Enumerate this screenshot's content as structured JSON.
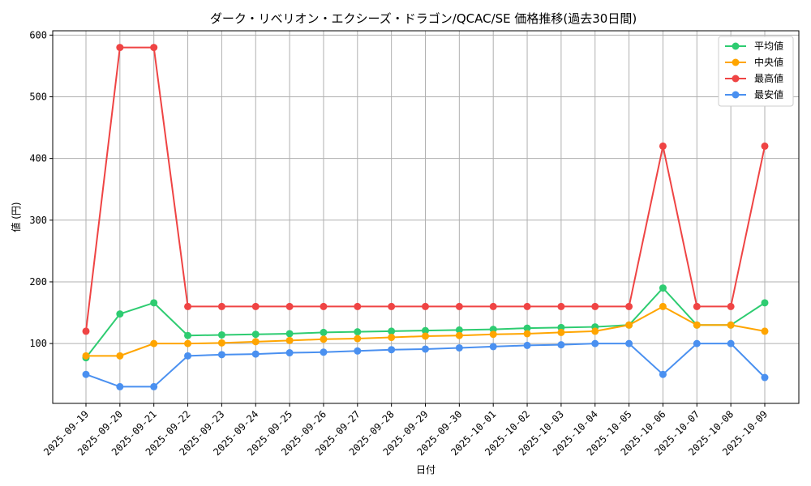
{
  "chart_data": {
    "type": "line",
    "title": "ダーク・リベリオン・エクシーズ・ドラゴン/QCAC/SE 価格推移(過去30日間)",
    "xlabel": "日付",
    "ylabel": "値 (円)",
    "ylim": [
      3,
      607
    ],
    "yticks": [
      100,
      200,
      300,
      400,
      500,
      600
    ],
    "grid": true,
    "legend_position": "top-right",
    "categories": [
      "2025-09-19",
      "2025-09-20",
      "2025-09-21",
      "2025-09-22",
      "2025-09-23",
      "2025-09-24",
      "2025-09-25",
      "2025-09-26",
      "2025-09-27",
      "2025-09-28",
      "2025-09-29",
      "2025-09-30",
      "2025-10-01",
      "2025-10-02",
      "2025-10-03",
      "2025-10-04",
      "2025-10-05",
      "2025-10-06",
      "2025-10-07",
      "2025-10-08",
      "2025-10-09"
    ],
    "series": [
      {
        "name": "平均値",
        "color": "#2ecc71",
        "values": [
          77,
          148,
          166,
          113,
          114,
          115,
          116,
          118,
          119,
          120,
          121,
          122,
          123,
          125,
          126,
          127,
          130,
          190,
          130,
          130,
          166
        ]
      },
      {
        "name": "中央値",
        "color": "#ffa500",
        "values": [
          80,
          80,
          100,
          100,
          101,
          103,
          105,
          107,
          108,
          110,
          112,
          113,
          115,
          116,
          118,
          120,
          130,
          160,
          130,
          130,
          120
        ]
      },
      {
        "name": "最高値",
        "color": "#ef4444",
        "values": [
          120,
          580,
          580,
          160,
          160,
          160,
          160,
          160,
          160,
          160,
          160,
          160,
          160,
          160,
          160,
          160,
          160,
          420,
          160,
          160,
          420
        ]
      },
      {
        "name": "最安値",
        "color": "#4a90f0",
        "values": [
          50,
          30,
          30,
          80,
          82,
          83,
          85,
          86,
          88,
          90,
          91,
          93,
          95,
          97,
          98,
          100,
          100,
          50,
          100,
          100,
          45
        ]
      }
    ]
  }
}
